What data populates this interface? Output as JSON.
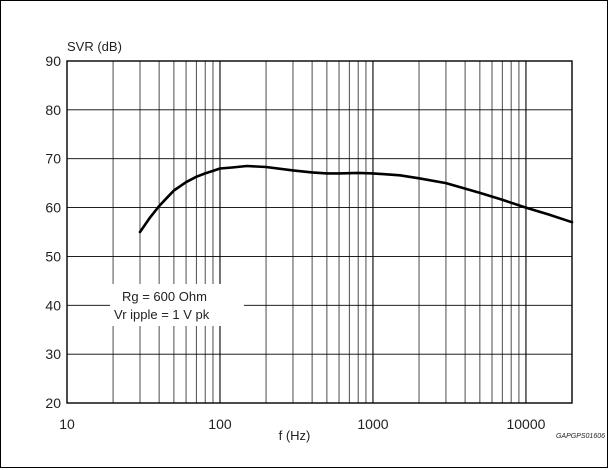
{
  "chart_data": {
    "type": "line",
    "xscale": "log",
    "xlim": [
      10,
      20000
    ],
    "ylim": [
      20,
      90
    ],
    "xlabel": "f (Hz)",
    "ylabel": "SVR (dB)",
    "xticks": [
      "10",
      "100",
      "1000",
      "10000"
    ],
    "yticks": [
      "20",
      "30",
      "40",
      "50",
      "60",
      "70",
      "80",
      "90"
    ],
    "grid": true,
    "annotation": [
      "Rg = 600 Ohm",
      "Vr ipple = 1 V pk"
    ],
    "code": "GAPGPS01606",
    "series": [
      {
        "x": [
          30,
          35,
          40,
          45,
          50,
          60,
          70,
          80,
          90,
          100,
          120,
          150,
          200,
          300,
          400,
          500,
          600,
          800,
          1000,
          1500,
          2000,
          3000,
          5000,
          7000,
          10000,
          14000,
          20000
        ],
        "y": [
          55,
          58,
          60.3,
          62,
          63.5,
          65.2,
          66.3,
          67,
          67.5,
          68,
          68.2,
          68.5,
          68.3,
          67.6,
          67.2,
          67,
          67,
          67.1,
          67,
          66.6,
          66,
          65,
          63,
          61.6,
          60,
          58.6,
          57
        ]
      }
    ]
  }
}
